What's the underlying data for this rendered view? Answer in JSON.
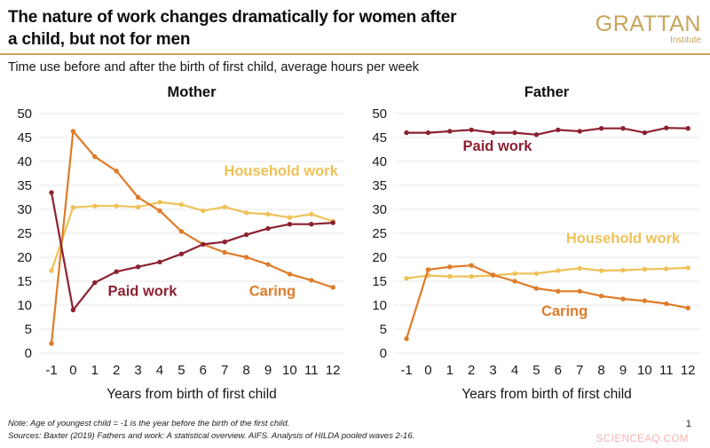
{
  "header": {
    "title_line1": "The nature of work changes dramatically for women after",
    "title_line2": "a child, but not for men",
    "logo": {
      "name": "GRATTAN",
      "sub": "Institute"
    },
    "subtitle": "Time use before and after the birth of first child, average hours per week"
  },
  "colors": {
    "brand_gold": "#C7A45A",
    "divider_gold": "#C7A45A",
    "paid_work": "#8C2130",
    "household_work": "#EFC158",
    "caring": "#E07B28",
    "gridline": "#E7E7E7",
    "watermark_pink": "#F2B3AE"
  },
  "chart_data": [
    {
      "type": "line",
      "title": "Mother",
      "xlabel": "Years from birth of first child",
      "x": [
        -1,
        0,
        1,
        2,
        3,
        4,
        5,
        6,
        7,
        8,
        9,
        10,
        11,
        12
      ],
      "ylim": [
        0,
        50
      ],
      "ytick_step": 5,
      "grid": true,
      "legend": "inline-labels",
      "series": [
        {
          "name": "Paid work",
          "color": "#8C2130",
          "draw_order": 3,
          "values": [
            33.5,
            9.0,
            14.7,
            17.0,
            18.0,
            19.0,
            20.7,
            22.7,
            23.2,
            24.7,
            26.0,
            26.9,
            26.9,
            27.2
          ],
          "label_pos": {
            "x": 3.2,
            "y": 11.9
          }
        },
        {
          "name": "Household work",
          "color": "#EFC158",
          "draw_order": 1,
          "values": [
            17.2,
            30.4,
            30.7,
            30.7,
            30.5,
            31.5,
            31.0,
            29.7,
            30.5,
            29.3,
            29.0,
            28.3,
            29.0,
            27.5
          ],
          "label_pos": {
            "x": 9.6,
            "y": 37.0
          }
        },
        {
          "name": "Caring",
          "color": "#E07B28",
          "draw_order": 2,
          "values": [
            2.0,
            46.3,
            41.0,
            38.0,
            32.5,
            29.7,
            25.4,
            22.7,
            21.0,
            20.0,
            18.5,
            16.5,
            15.2,
            13.7
          ],
          "label_pos": {
            "x": 9.2,
            "y": 11.9
          }
        }
      ]
    },
    {
      "type": "line",
      "title": "Father",
      "xlabel": "Years from birth of first child",
      "x": [
        -1,
        0,
        1,
        2,
        3,
        4,
        5,
        6,
        7,
        8,
        9,
        10,
        11,
        12
      ],
      "ylim": [
        0,
        50
      ],
      "ytick_step": 5,
      "grid": true,
      "legend": "inline-labels",
      "series": [
        {
          "name": "Paid work",
          "color": "#8C2130",
          "draw_order": 3,
          "values": [
            46.0,
            46.0,
            46.3,
            46.6,
            46.0,
            46.0,
            45.6,
            46.6,
            46.3,
            46.9,
            46.9,
            46.0,
            47.0,
            46.9
          ],
          "label_pos": {
            "x": 3.2,
            "y": 42.2
          }
        },
        {
          "name": "Household work",
          "color": "#EFC158",
          "draw_order": 1,
          "values": [
            15.6,
            16.2,
            16.0,
            16.0,
            16.2,
            16.6,
            16.6,
            17.2,
            17.7,
            17.2,
            17.3,
            17.5,
            17.6,
            17.8
          ],
          "label_pos": {
            "x": 9.0,
            "y": 23.0
          }
        },
        {
          "name": "Caring",
          "color": "#E07B28",
          "draw_order": 2,
          "values": [
            3.0,
            17.4,
            18.0,
            18.3,
            16.3,
            15.0,
            13.5,
            12.9,
            12.9,
            11.9,
            11.3,
            10.9,
            10.3,
            9.4
          ],
          "label_pos": {
            "x": 6.3,
            "y": 7.8
          }
        }
      ]
    }
  ],
  "footer": {
    "note": "Note: Age of youngest child = -1 is the year before the birth of the first child.",
    "sources": "Sources: Baxter (2019) Fathers and work: A statistical overview. AIFS. Analysis of HILDA pooled waves 2-16.",
    "page_number": "1",
    "watermark": "SCIENCEAQ.COM"
  }
}
